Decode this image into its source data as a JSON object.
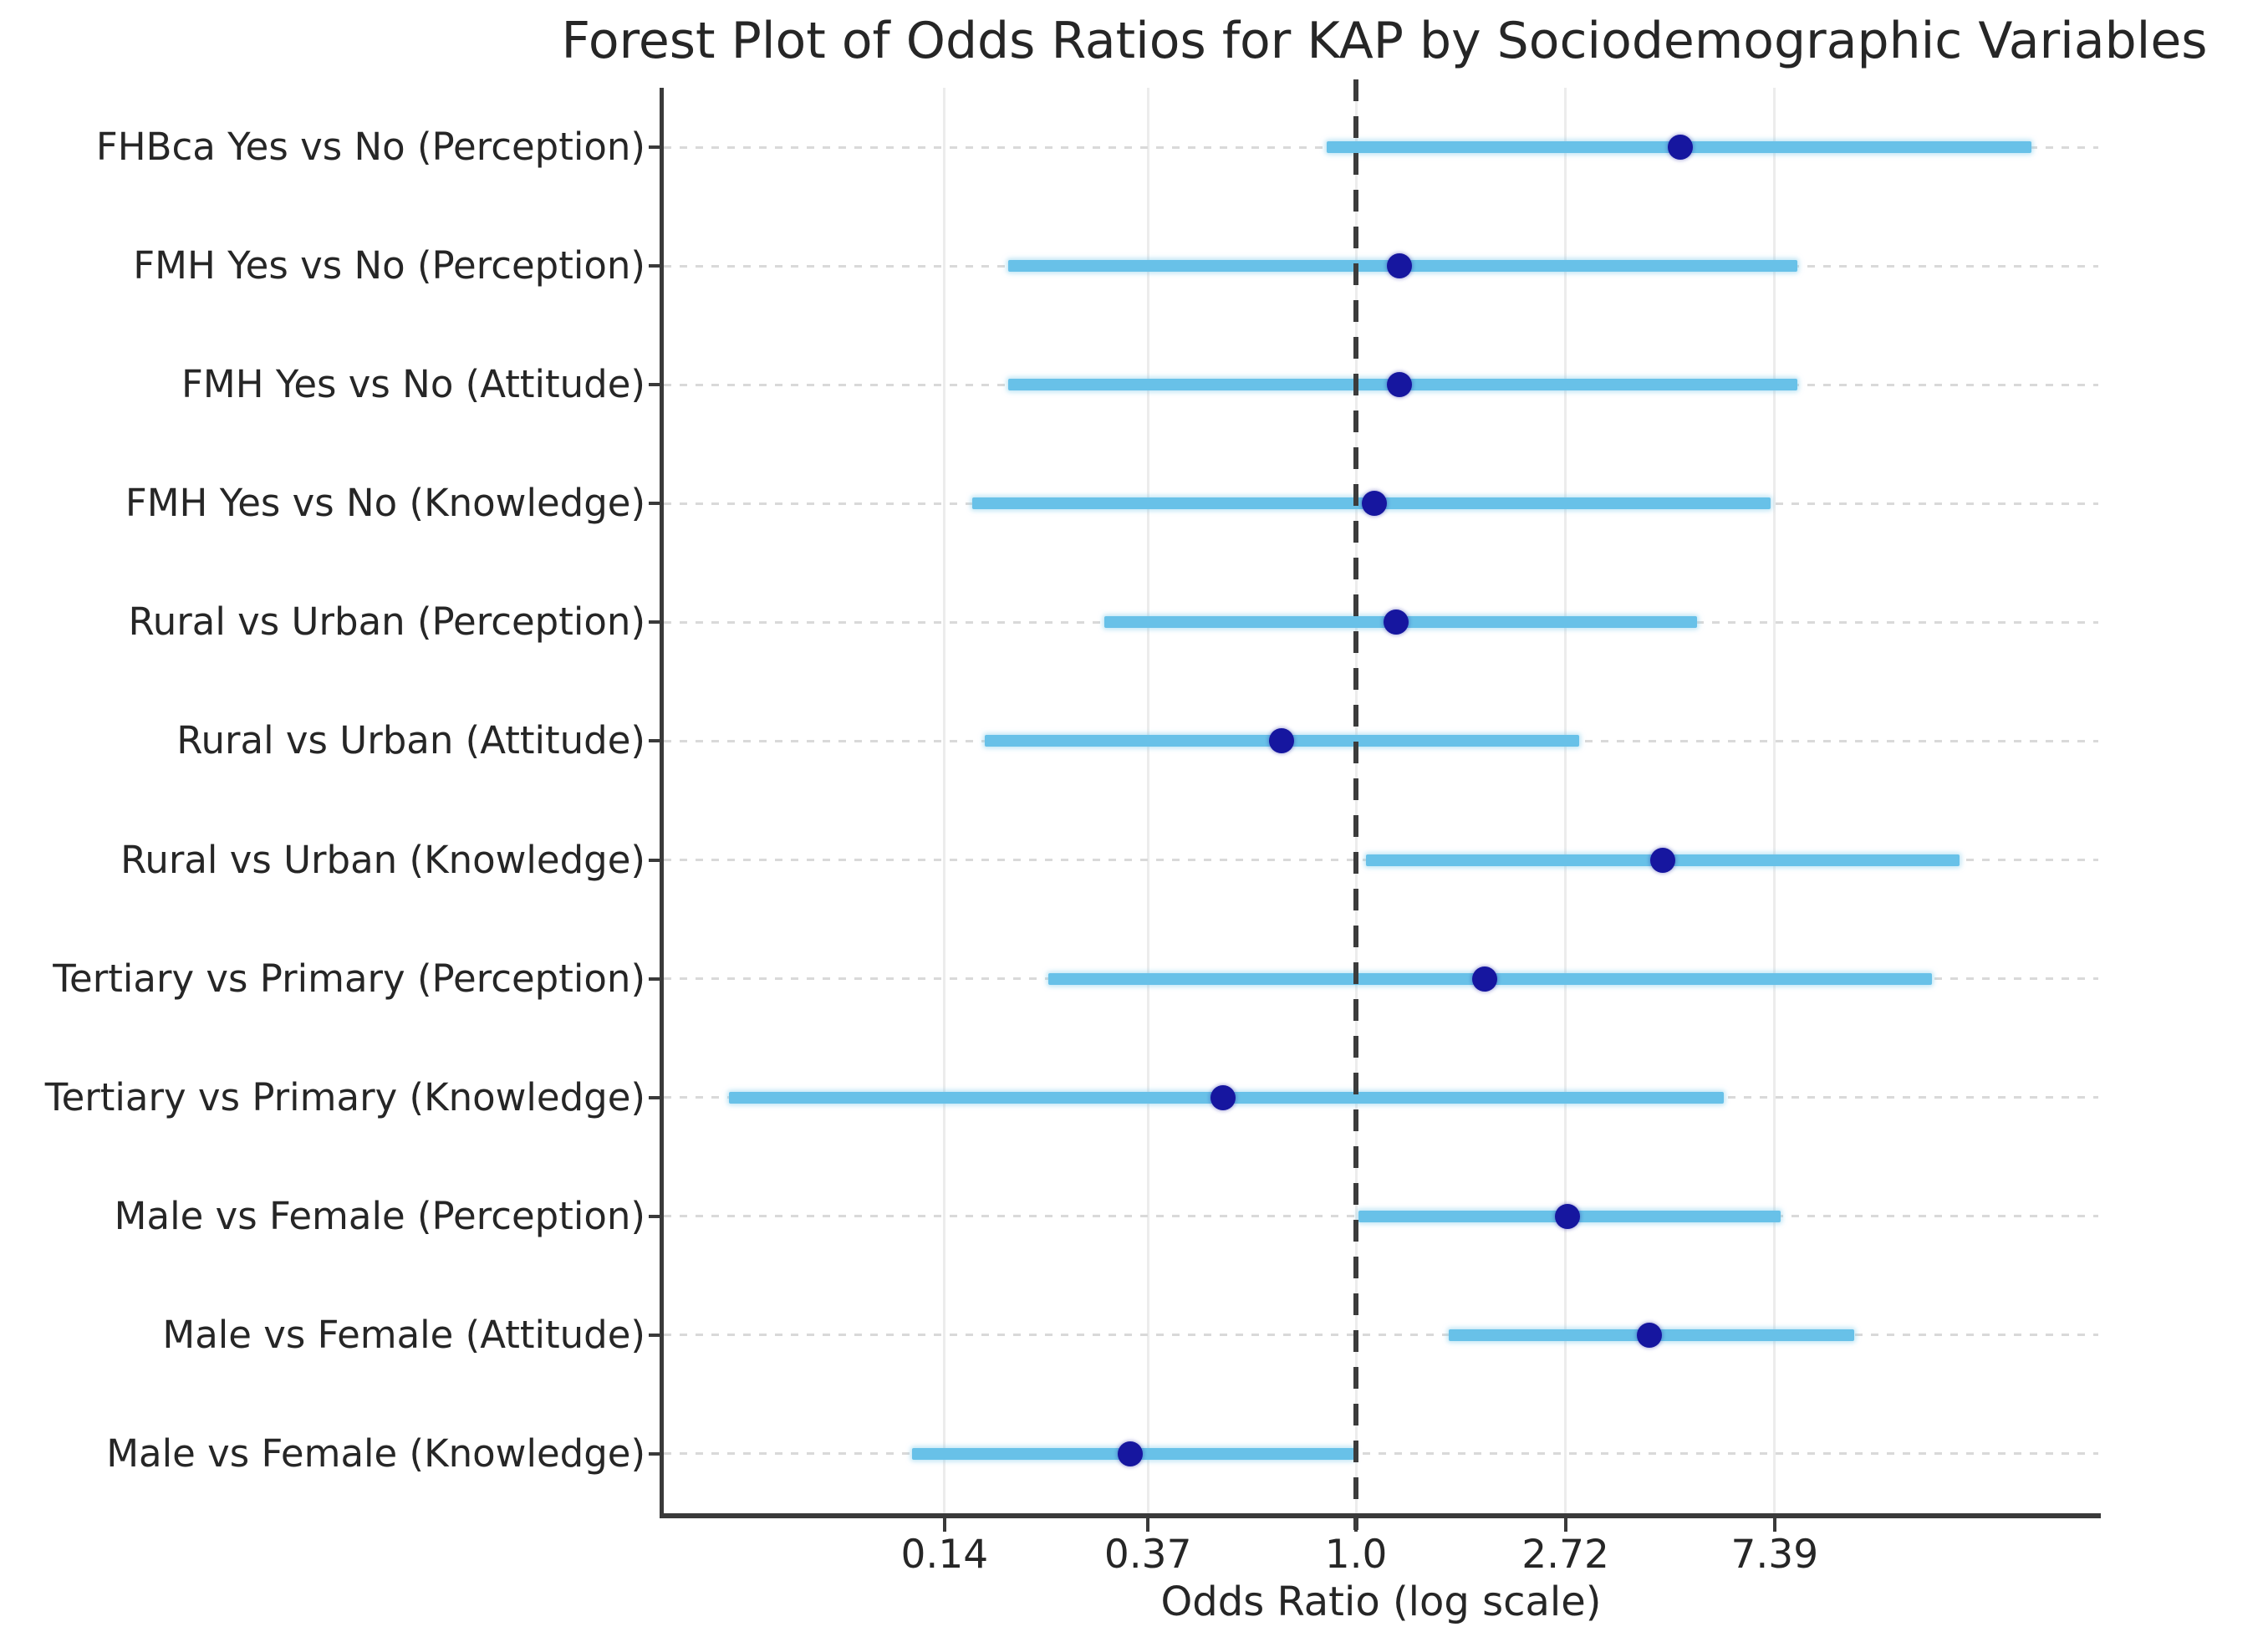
{
  "chart_data": {
    "type": "scatter",
    "subtype": "forest-plot",
    "title": "Forest Plot of Odds Ratios for KAP by Sociodemographic Variables",
    "xlabel": "Odds Ratio (log scale)",
    "ylabel": "",
    "x_scale": "log",
    "xlim": [
      0.0366,
      34.7
    ],
    "x_ticks": [
      0.14,
      0.37,
      1.0,
      2.72,
      7.39
    ],
    "x_tick_labels": [
      "0.14",
      "0.37",
      "1.0",
      "2.72",
      "7.39"
    ],
    "reference_line": 1.0,
    "grid": "horizontal-dotted and vertical-light",
    "legend": null,
    "rows": [
      {
        "label": "FHBca Yes vs No (Perception)",
        "or": 4.7,
        "ci_low": 0.87,
        "ci_high": 25.2
      },
      {
        "label": "FMH Yes vs No (Perception)",
        "or": 1.23,
        "ci_low": 0.19,
        "ci_high": 8.25
      },
      {
        "label": "FMH Yes vs No (Attitude)",
        "or": 1.23,
        "ci_low": 0.19,
        "ci_high": 8.25
      },
      {
        "label": "FMH Yes vs No (Knowledge)",
        "or": 1.09,
        "ci_low": 0.16,
        "ci_high": 7.25
      },
      {
        "label": "Rural vs Urban (Perception)",
        "or": 1.21,
        "ci_low": 0.3,
        "ci_high": 5.1
      },
      {
        "label": "Rural vs Urban (Attitude)",
        "or": 0.7,
        "ci_low": 0.17,
        "ci_high": 2.9
      },
      {
        "label": "Rural vs Urban (Knowledge)",
        "or": 4.33,
        "ci_low": 1.05,
        "ci_high": 17.9
      },
      {
        "label": "Tertiary vs Primary (Perception)",
        "or": 1.85,
        "ci_low": 0.23,
        "ci_high": 15.7
      },
      {
        "label": "Tertiary vs Primary (Knowledge)",
        "or": 0.53,
        "ci_low": 0.05,
        "ci_high": 5.8
      },
      {
        "label": "Male vs Female (Perception)",
        "or": 2.75,
        "ci_low": 1.01,
        "ci_high": 7.6
      },
      {
        "label": "Male vs Female (Attitude)",
        "or": 4.06,
        "ci_low": 1.56,
        "ci_high": 10.8
      },
      {
        "label": "Male vs Female (Knowledge)",
        "or": 0.34,
        "ci_low": 0.12,
        "ci_high": 0.99
      }
    ],
    "colors": {
      "point": "#16169f",
      "ci_bar": "#68c1e8",
      "reference_line": "#3c3c3c",
      "v_gridline": "#ececec",
      "h_gridline": "#d9d9d9",
      "axis": "#3a3a3a",
      "text": "#262626",
      "background": "#ffffff"
    }
  }
}
